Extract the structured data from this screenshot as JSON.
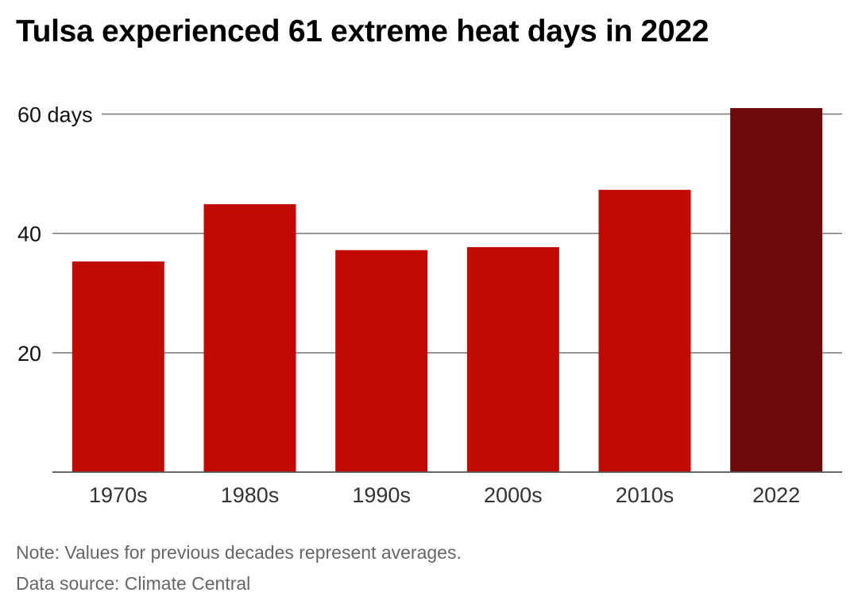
{
  "title": "Tulsa experienced 61 extreme heat days in 2022",
  "note": "Note: Values for previous decades represent averages.",
  "source": "Data source: Climate Central",
  "chart_data": {
    "type": "bar",
    "title": "Tulsa experienced 61 extreme heat days in 2022",
    "categories": [
      "1970s",
      "1980s",
      "1990s",
      "2000s",
      "2010s",
      "2022"
    ],
    "values": [
      35.3,
      44.9,
      37.2,
      37.7,
      47.3,
      61
    ],
    "yticks": [
      20,
      40,
      60
    ],
    "ytick_labels": [
      "20",
      "40",
      "60 days"
    ],
    "ylim": [
      0,
      61
    ],
    "grid": true,
    "colors": {
      "bar": "#c20a04",
      "highlight": "#6b090b",
      "grid": "#777777"
    },
    "highlight_index": 5
  }
}
